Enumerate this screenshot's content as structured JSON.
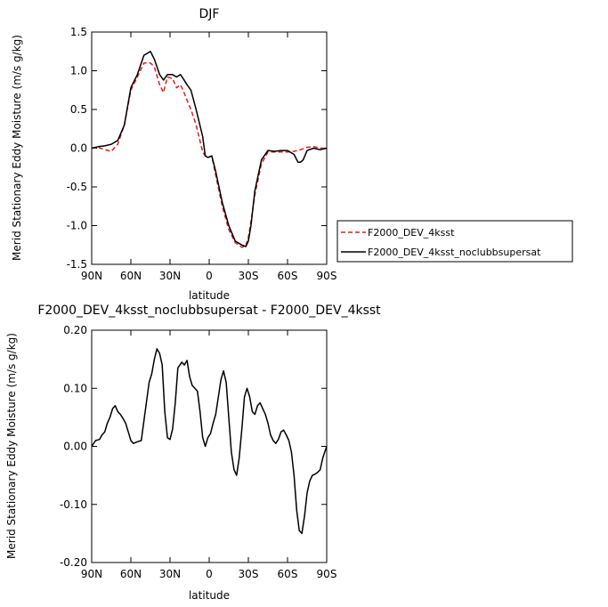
{
  "chart_data": [
    {
      "type": "line",
      "title": "DJF",
      "xlabel": "latitude",
      "ylabel": "Merid Stationary Eddy Moisture (m/s g/kg)",
      "xlim": [
        90,
        -90
      ],
      "ylim": [
        -1.5,
        1.5
      ],
      "x_ticks": [
        90,
        60,
        30,
        0,
        -30,
        -60,
        -90
      ],
      "x_tick_labels": [
        "90N",
        "60N",
        "30N",
        "0",
        "30S",
        "60S",
        "90S"
      ],
      "y_ticks": [
        -1.5,
        -1.0,
        -0.5,
        0.0,
        0.5,
        1.0,
        1.5
      ],
      "y_tick_labels": [
        "-1.5",
        "-1.0",
        "-0.5",
        "0.0",
        "0.5",
        "1.0",
        "1.5"
      ],
      "legend_position": "right",
      "series": [
        {
          "name": "F2000_DEV_4ksst",
          "color": "#e41a1c",
          "style": "dashed",
          "x": [
            90,
            85,
            80,
            75,
            70,
            65,
            60,
            55,
            50,
            45,
            42,
            38,
            35,
            32,
            28,
            25,
            22,
            20,
            17,
            14,
            10,
            5,
            3,
            1,
            -2,
            -5,
            -10,
            -15,
            -20,
            -25,
            -28,
            -30,
            -32,
            -35,
            -40,
            -45,
            -50,
            -55,
            -60,
            -65,
            -70,
            -75,
            -80,
            -85,
            -90
          ],
          "y": [
            0.0,
            0.01,
            -0.02,
            -0.04,
            0.05,
            0.3,
            0.75,
            0.92,
            1.1,
            1.1,
            1.05,
            0.82,
            0.72,
            0.92,
            0.9,
            0.78,
            0.82,
            0.75,
            0.62,
            0.5,
            0.3,
            -0.05,
            -0.1,
            -0.12,
            -0.1,
            -0.35,
            -0.75,
            -1.05,
            -1.22,
            -1.28,
            -1.26,
            -1.15,
            -0.95,
            -0.6,
            -0.2,
            -0.05,
            -0.05,
            -0.05,
            -0.05,
            -0.04,
            -0.02,
            0.01,
            0.02,
            0.0,
            0.0
          ]
        },
        {
          "name": "F2000_DEV_4ksst_noclubbsupersat",
          "color": "#000000",
          "style": "solid",
          "x": [
            90,
            85,
            80,
            75,
            70,
            65,
            60,
            55,
            50,
            45,
            42,
            38,
            35,
            32,
            28,
            25,
            22,
            20,
            17,
            14,
            10,
            5,
            3,
            1,
            -2,
            -5,
            -10,
            -15,
            -20,
            -25,
            -28,
            -30,
            -32,
            -35,
            -40,
            -45,
            -50,
            -55,
            -60,
            -65,
            -68,
            -70,
            -72,
            -75,
            -80,
            -85,
            -90
          ],
          "y": [
            0.0,
            0.02,
            0.03,
            0.05,
            0.1,
            0.3,
            0.78,
            0.95,
            1.2,
            1.25,
            1.15,
            0.95,
            0.88,
            0.95,
            0.95,
            0.92,
            0.95,
            0.9,
            0.82,
            0.75,
            0.5,
            0.15,
            -0.1,
            -0.12,
            -0.1,
            -0.3,
            -0.7,
            -1.0,
            -1.2,
            -1.25,
            -1.27,
            -1.2,
            -1.0,
            -0.55,
            -0.15,
            -0.03,
            -0.04,
            -0.03,
            -0.03,
            -0.08,
            -0.18,
            -0.18,
            -0.15,
            -0.03,
            0.0,
            -0.02,
            0.0
          ]
        }
      ]
    },
    {
      "type": "line",
      "title": "F2000_DEV_4ksst_noclubbsupersat - F2000_DEV_4ksst",
      "xlabel": "latitude",
      "ylabel": "Merid Stationary Eddy Moisture (m/s g/kg)",
      "xlim": [
        90,
        -90
      ],
      "ylim": [
        -0.2,
        0.2
      ],
      "x_ticks": [
        90,
        60,
        30,
        0,
        -30,
        -60,
        -90
      ],
      "x_tick_labels": [
        "90N",
        "60N",
        "30N",
        "0",
        "30S",
        "60S",
        "90S"
      ],
      "y_ticks": [
        -0.2,
        -0.1,
        0.0,
        0.1,
        0.2
      ],
      "y_tick_labels": [
        "-0.20",
        "-0.10",
        "0.00",
        "0.10",
        "0.20"
      ],
      "series": [
        {
          "color": "#000000",
          "style": "solid",
          "x": [
            90,
            87,
            84,
            82,
            80,
            78,
            76,
            74,
            72,
            70,
            68,
            66,
            64,
            62,
            60,
            58,
            55,
            52,
            49,
            46,
            44,
            42,
            40,
            38,
            36,
            34,
            32,
            30,
            28,
            26,
            24,
            21,
            19,
            17,
            15,
            13,
            11,
            9,
            7,
            5,
            3,
            1,
            -1,
            -3,
            -5,
            -7,
            -9,
            -11,
            -13,
            -15,
            -17,
            -19,
            -21,
            -23,
            -25,
            -27,
            -29,
            -31,
            -33,
            -35,
            -37,
            -39,
            -41,
            -43,
            -45,
            -47,
            -49,
            -51,
            -53,
            -55,
            -57,
            -59,
            -61,
            -63,
            -65,
            -67,
            -69,
            -71,
            -73,
            -75,
            -77,
            -79,
            -81,
            -83,
            -85,
            -87,
            -90
          ],
          "y": [
            0.0,
            0.01,
            0.012,
            0.02,
            0.025,
            0.04,
            0.05,
            0.065,
            0.07,
            0.06,
            0.055,
            0.048,
            0.04,
            0.025,
            0.01,
            0.005,
            0.008,
            0.01,
            0.06,
            0.11,
            0.125,
            0.15,
            0.168,
            0.16,
            0.14,
            0.06,
            0.015,
            0.012,
            0.03,
            0.075,
            0.135,
            0.145,
            0.14,
            0.148,
            0.12,
            0.105,
            0.1,
            0.095,
            0.06,
            0.015,
            0.0,
            0.015,
            0.022,
            0.04,
            0.055,
            0.085,
            0.115,
            0.13,
            0.11,
            0.05,
            -0.01,
            -0.04,
            -0.05,
            -0.02,
            0.03,
            0.085,
            0.1,
            0.085,
            0.06,
            0.055,
            0.07,
            0.075,
            0.065,
            0.055,
            0.04,
            0.02,
            0.01,
            0.005,
            0.012,
            0.025,
            0.028,
            0.02,
            0.01,
            -0.01,
            -0.05,
            -0.11,
            -0.145,
            -0.15,
            -0.12,
            -0.08,
            -0.06,
            -0.05,
            -0.048,
            -0.045,
            -0.04,
            -0.02,
            0.0
          ]
        }
      ]
    }
  ]
}
